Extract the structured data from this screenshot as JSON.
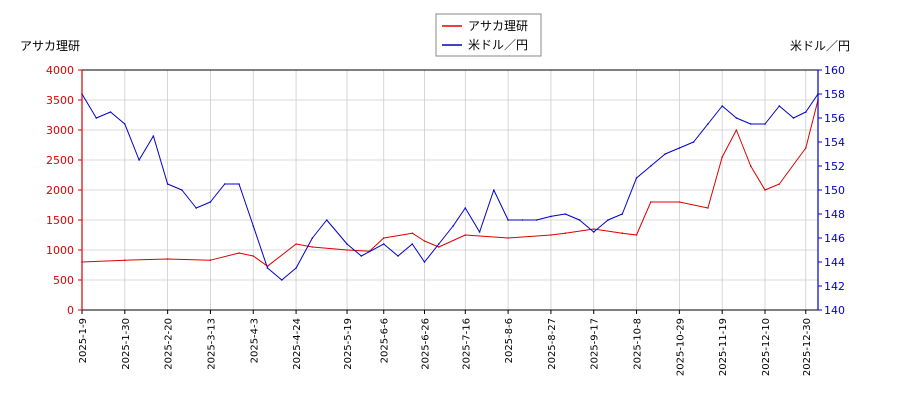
{
  "chart_data": {
    "type": "line",
    "left_axis_label": "アサカ理研",
    "right_axis_label": "米ドル／円",
    "legend_position": "top-center",
    "grid": true,
    "x_ticks": [
      "2025-1-9",
      "2025-1-30",
      "2025-2-20",
      "2025-3-13",
      "2025-4-3",
      "2025-4-24",
      "2025-5-19",
      "2025-6-6",
      "2025-6-26",
      "2025-7-16",
      "2025-8-6",
      "2025-8-27",
      "2025-9-17",
      "2025-10-8",
      "2025-10-29",
      "2025-11-19",
      "2025-12-10",
      "2025-12-30"
    ],
    "y_left": {
      "min": 0,
      "max": 4000,
      "ticks": [
        0,
        500,
        1000,
        1500,
        2000,
        2500,
        3000,
        3500,
        4000
      ]
    },
    "y_right": {
      "min": 140,
      "max": 160,
      "ticks": [
        140,
        142,
        144,
        146,
        148,
        150,
        152,
        154,
        156,
        158,
        160
      ]
    },
    "series": [
      {
        "name": "アサカ理研",
        "axis": "left",
        "color": "#dd0000",
        "x": [
          "2025-1-9",
          "2025-1-30",
          "2025-2-20",
          "2025-3-13",
          "2025-3-27",
          "2025-4-3",
          "2025-4-10",
          "2025-4-24",
          "2025-5-2",
          "2025-5-19",
          "2025-5-30",
          "2025-6-6",
          "2025-6-20",
          "2025-6-26",
          "2025-7-3",
          "2025-7-16",
          "2025-8-6",
          "2025-8-27",
          "2025-9-3",
          "2025-9-17",
          "2025-10-1",
          "2025-10-8",
          "2025-10-15",
          "2025-10-29",
          "2025-11-12",
          "2025-11-19",
          "2025-11-26",
          "2025-12-3",
          "2025-12-10",
          "2025-12-17",
          "2025-12-30",
          "2026-1-5"
        ],
        "values": [
          800,
          830,
          850,
          830,
          950,
          900,
          730,
          1100,
          1050,
          1000,
          980,
          1200,
          1280,
          1150,
          1050,
          1250,
          1200,
          1250,
          1280,
          1350,
          1280,
          1250,
          1800,
          1800,
          1700,
          2550,
          3000,
          2400,
          2000,
          2100,
          2700,
          3500
        ]
      },
      {
        "name": "米ドル／円",
        "axis": "right",
        "color": "#0000cc",
        "x": [
          "2025-1-9",
          "2025-1-16",
          "2025-1-23",
          "2025-1-30",
          "2025-2-6",
          "2025-2-13",
          "2025-2-20",
          "2025-2-27",
          "2025-3-6",
          "2025-3-13",
          "2025-3-20",
          "2025-3-27",
          "2025-4-3",
          "2025-4-10",
          "2025-4-17",
          "2025-4-24",
          "2025-5-2",
          "2025-5-9",
          "2025-5-19",
          "2025-5-26",
          "2025-6-6",
          "2025-6-13",
          "2025-6-20",
          "2025-6-26",
          "2025-7-3",
          "2025-7-10",
          "2025-7-16",
          "2025-7-23",
          "2025-7-30",
          "2025-8-6",
          "2025-8-13",
          "2025-8-20",
          "2025-8-27",
          "2025-9-3",
          "2025-9-10",
          "2025-9-17",
          "2025-9-24",
          "2025-10-1",
          "2025-10-8",
          "2025-10-15",
          "2025-10-22",
          "2025-10-29",
          "2025-11-5",
          "2025-11-12",
          "2025-11-19",
          "2025-11-26",
          "2025-12-3",
          "2025-12-10",
          "2025-12-17",
          "2025-12-24",
          "2025-12-30",
          "2026-1-5"
        ],
        "values": [
          158,
          156,
          156.5,
          155.5,
          152.5,
          154.5,
          150.5,
          150,
          148.5,
          149,
          150.5,
          150.5,
          147,
          143.5,
          142.5,
          143.5,
          146,
          147.5,
          145.5,
          144.5,
          145.5,
          144.5,
          145.5,
          144,
          145.5,
          147,
          148.5,
          146.5,
          150,
          147.5,
          147.5,
          147.5,
          147.8,
          148,
          147.5,
          146.5,
          147.5,
          148,
          151,
          152,
          153,
          153.5,
          154,
          155.5,
          157,
          156,
          155.5,
          155.5,
          157,
          156,
          156.5,
          158
        ]
      }
    ]
  }
}
